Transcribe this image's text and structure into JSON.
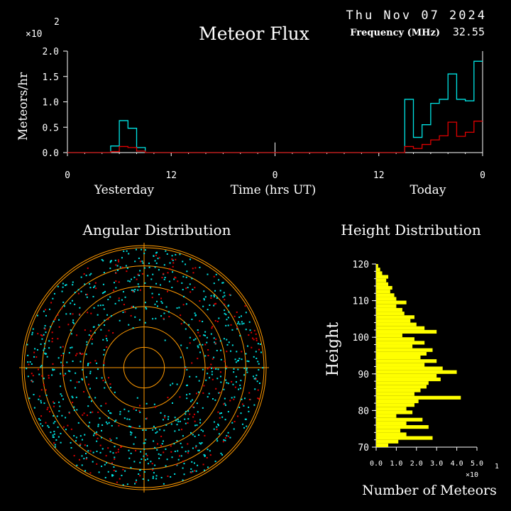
{
  "header": {
    "date": "Thu Nov 07 2024",
    "frequency_label": "Frequency (MHz)",
    "frequency_value": "32.55"
  },
  "colors": {
    "background": "#000000",
    "axis": "#ffffff",
    "cyan_series": "#00e5e5",
    "red_series": "#e00000",
    "height_bars": "#ffff00",
    "rings": "#ff9900"
  },
  "chart_data": [
    {
      "type": "line",
      "title": "Meteor Flux",
      "ylabel": "Meteors/hr",
      "y_multiplier_text": "×10",
      "y_multiplier_exp": "2",
      "ylim": [
        0,
        2.0
      ],
      "y_ticks": [
        "0.0",
        "0.5",
        "1.0",
        "1.5",
        "2.0"
      ],
      "x_ticks": [
        "0",
        "12",
        "0",
        "12",
        "0"
      ],
      "x_day_labels": [
        "Yesterday",
        "Time (hrs UT)",
        "Today"
      ],
      "xlim_hours": [
        0,
        48
      ],
      "step": true,
      "series": [
        {
          "x": [
            0,
            1,
            2,
            3,
            4,
            5,
            6,
            7,
            8,
            9,
            10,
            11,
            12,
            13,
            14,
            15,
            16,
            17,
            18,
            19,
            20,
            21,
            22,
            23,
            24,
            25,
            26,
            27,
            28,
            29,
            30,
            31,
            32,
            33,
            34,
            35,
            36,
            37,
            38,
            39,
            40,
            41,
            42,
            43,
            44,
            45,
            46,
            47,
            48
          ],
          "y": [
            0,
            0,
            0,
            0,
            0,
            0.13,
            0.63,
            0.48,
            0.1,
            0,
            0,
            0,
            0,
            0,
            0,
            0,
            0,
            0,
            0,
            0,
            0,
            0,
            0,
            0,
            0,
            0,
            0,
            0,
            0,
            0,
            0,
            0,
            0,
            0,
            0,
            0,
            0,
            0,
            0,
            1.05,
            0.3,
            0.55,
            0.97,
            1.05,
            1.55,
            1.05,
            1.02,
            1.8,
            1.8
          ]
        },
        {
          "x": [
            0,
            1,
            2,
            3,
            4,
            5,
            6,
            7,
            8,
            9,
            10,
            11,
            12,
            13,
            14,
            15,
            16,
            17,
            18,
            19,
            20,
            21,
            22,
            23,
            24,
            25,
            26,
            27,
            28,
            29,
            30,
            31,
            32,
            33,
            34,
            35,
            36,
            37,
            38,
            39,
            40,
            41,
            42,
            43,
            44,
            45,
            46,
            47,
            48
          ],
          "y": [
            0,
            0,
            0,
            0,
            0,
            0.02,
            0.12,
            0.1,
            0.03,
            0,
            0,
            0,
            0,
            0,
            0,
            0,
            0,
            0,
            0,
            0,
            0,
            0,
            0,
            0,
            0,
            0,
            0,
            0,
            0,
            0,
            0,
            0,
            0,
            0,
            0,
            0,
            0,
            0,
            0,
            0.12,
            0.08,
            0.16,
            0.25,
            0.33,
            0.6,
            0.32,
            0.4,
            0.62,
            0.62
          ]
        }
      ],
      "marker_x": 24,
      "marker_height": 0.2
    },
    {
      "type": "scatter",
      "title": "Angular Distribution",
      "rings": 6,
      "point_count_cyan": 820,
      "point_count_red": 300,
      "points_note_seed": 7
    },
    {
      "type": "bar",
      "title": "Height Distribution",
      "ylabel": "Height",
      "xlabel": "Number of Meteors",
      "x_multiplier_text": "×10",
      "x_multiplier_exp": "1",
      "y_ticks": [
        "70",
        "80",
        "90",
        "100",
        "110",
        "120"
      ],
      "x_ticks": [
        "0.0",
        "1.0",
        "2.0",
        "3.0",
        "4.0",
        "5.0"
      ],
      "ylim": [
        70,
        120
      ],
      "xlim": [
        0,
        5.0
      ],
      "heights": [
        70,
        71,
        72,
        73,
        74,
        75,
        76,
        77,
        78,
        79,
        80,
        81,
        82,
        83,
        84,
        85,
        86,
        87,
        88,
        89,
        90,
        91,
        92,
        93,
        94,
        95,
        96,
        97,
        98,
        99,
        100,
        101,
        102,
        103,
        104,
        105,
        106,
        107,
        108,
        109,
        110,
        111,
        112,
        113,
        114,
        115,
        116,
        117,
        118,
        119
      ],
      "values": [
        0.6,
        1.1,
        2.8,
        1.5,
        1.2,
        2.6,
        1.5,
        2.3,
        1.0,
        1.8,
        1.5,
        1.9,
        2.1,
        4.2,
        1.9,
        2.2,
        2.5,
        2.6,
        3.2,
        3.0,
        4.0,
        3.3,
        2.4,
        3.0,
        2.2,
        2.5,
        2.8,
        1.8,
        2.4,
        1.9,
        1.3,
        3.0,
        2.4,
        2.0,
        1.7,
        1.9,
        1.4,
        1.3,
        1.0,
        1.5,
        1.0,
        0.9,
        0.7,
        0.8,
        0.6,
        0.5,
        0.6,
        0.3,
        0.2,
        0.1
      ]
    }
  ]
}
